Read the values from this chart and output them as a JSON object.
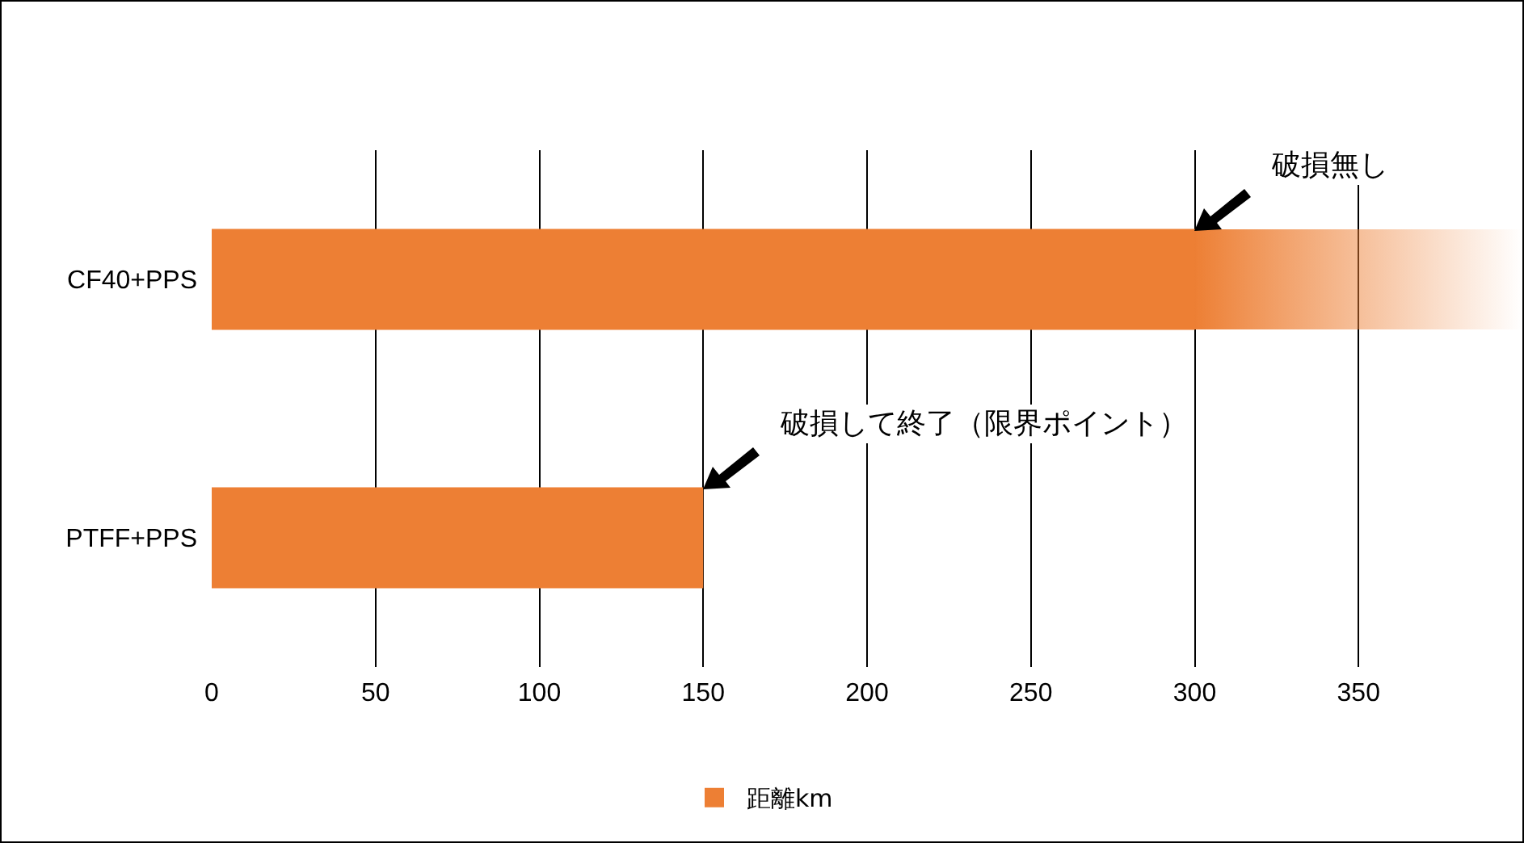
{
  "chart_data": {
    "type": "bar",
    "orientation": "horizontal",
    "categories": [
      "CF40+PPS",
      "PTFF+PPS"
    ],
    "series": [
      {
        "name": "距離km",
        "color": "#ed7f34",
        "values": [
          300,
          150
        ]
      }
    ],
    "xlim": [
      0,
      400
    ],
    "xticks": [
      0,
      50,
      100,
      150,
      200,
      250,
      300,
      350
    ],
    "grid": "x",
    "legend": "bottom",
    "annotations": [
      "破損無し",
      "破損して終了（限界ポイント）"
    ]
  }
}
